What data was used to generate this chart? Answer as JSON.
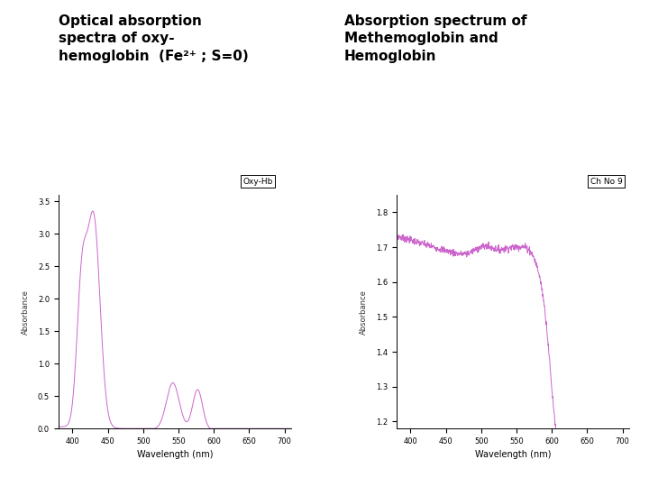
{
  "title_left": "Optical absorption\nspectra of oxy-\nhemoglobin  (Fe²⁺ ; S=0)",
  "title_right": "Absorption spectrum of\nMethemoglobin and\nHemoglobin",
  "legend_left": "Oxy-Hb",
  "legend_right": "Ch No 9",
  "xlabel": "Wavelength (nm)",
  "xlim": [
    380,
    710
  ],
  "ylim_left": [
    0.0,
    3.6
  ],
  "ylim_right": [
    1.18,
    1.85
  ],
  "xticks": [
    400,
    450,
    500,
    550,
    600,
    650,
    700
  ],
  "yticks_left": [
    0.0,
    0.5,
    1.0,
    1.5,
    2.0,
    2.5,
    3.0,
    3.5
  ],
  "yticks_right": [
    1.2,
    1.3,
    1.4,
    1.5,
    1.6,
    1.7,
    1.8
  ],
  "line_color": "#cc66cc",
  "background": "#ffffff",
  "title_fontsize": 11,
  "tick_fontsize": 6,
  "xlabel_fontsize": 7
}
